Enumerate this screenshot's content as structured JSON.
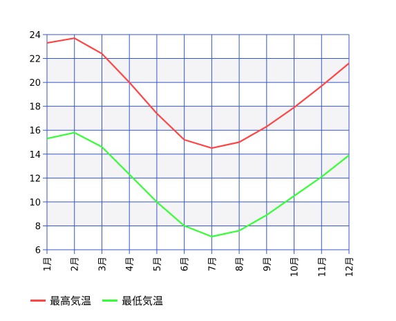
{
  "chart_data": {
    "type": "line",
    "categories": [
      "1月",
      "2月",
      "3月",
      "4月",
      "5月",
      "6月",
      "7月",
      "8月",
      "9月",
      "10月",
      "11月",
      "12月"
    ],
    "ylim": [
      6,
      24
    ],
    "yticks": [
      6,
      8,
      10,
      12,
      14,
      16,
      18,
      20,
      22,
      24
    ],
    "grid": true,
    "legend_position": "bottom-left",
    "series": [
      {
        "name": "最高気温",
        "color": "#ff4444",
        "values": [
          23.3,
          23.7,
          22.4,
          20.0,
          17.4,
          15.2,
          14.5,
          15.0,
          16.3,
          17.9,
          19.7,
          21.6
        ]
      },
      {
        "name": "最低気温",
        "color": "#33ff33",
        "values": [
          15.3,
          15.8,
          14.6,
          12.3,
          10.0,
          8.0,
          7.1,
          7.6,
          8.9,
          10.5,
          12.1,
          13.9
        ]
      }
    ]
  },
  "colors": {
    "grid": "#3355cc",
    "band": "#f4f4f6"
  }
}
